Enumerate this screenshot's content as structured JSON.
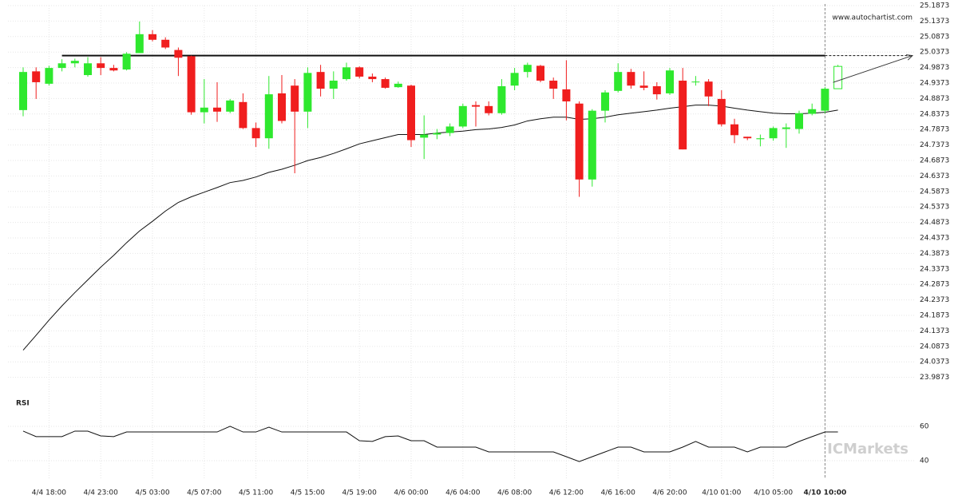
{
  "chart_data": {
    "type": "candlestick",
    "source": "www.autochartist.com",
    "watermark": "ICMarkets",
    "categories": [
      null,
      null,
      "4/4 18:00",
      null,
      null,
      null,
      "4/4 23:00",
      null,
      null,
      null,
      "4/5 03:00",
      null,
      null,
      null,
      "4/5 07:00",
      null,
      null,
      null,
      "4/5 11:00",
      null,
      null,
      null,
      "4/5 15:00",
      null,
      null,
      null,
      "4/5 19:00",
      null,
      null,
      null,
      "4/6 00:00",
      null,
      null,
      null,
      "4/6 04:00",
      null,
      null,
      null,
      "4/6 08:00",
      null,
      null,
      null,
      "4/6 12:00",
      null,
      null,
      null,
      "4/6 16:00",
      null,
      null,
      null,
      "4/6 20:00",
      null,
      null,
      null,
      "4/10 01:00",
      null,
      null,
      null,
      "4/10 05:00",
      null,
      null,
      null,
      "4/10 10:00",
      null
    ],
    "open": [
      24.85,
      24.975,
      24.935,
      24.986,
      25.001,
      24.963,
      25.001,
      24.986,
      24.981,
      25.034,
      25.095,
      25.077,
      25.044,
      25.024,
      24.843,
      24.858,
      24.845,
      24.876,
      24.792,
      24.759,
      24.904,
      24.929,
      24.845,
      24.973,
      24.919,
      24.95,
      24.988,
      24.958,
      24.95,
      24.924,
      24.929,
      24.761,
      24.771,
      24.776,
      24.797,
      24.866,
      24.863,
      24.84,
      24.929,
      24.973,
      24.993,
      24.945,
      24.917,
      24.871,
      24.626,
      24.848,
      24.912,
      24.973,
      24.929,
      24.927,
      24.904,
      24.945,
      24.94,
      24.942,
      24.886,
      24.804,
      24.764,
      24.756,
      24.759,
      24.789,
      24.789,
      24.838,
      24.848,
      24.919
    ],
    "high": [
      24.988,
      24.988,
      24.993,
      25.014,
      25.016,
      25.021,
      25.021,
      24.996,
      25.037,
      25.136,
      25.108,
      25.085,
      25.052,
      25.026,
      24.95,
      24.94,
      24.886,
      24.904,
      24.81,
      24.96,
      24.963,
      24.95,
      24.988,
      24.996,
      24.975,
      25.003,
      24.991,
      24.968,
      24.955,
      24.942,
      24.932,
      24.833,
      24.789,
      24.807,
      24.871,
      24.878,
      24.878,
      24.95,
      24.986,
      25.003,
      24.996,
      24.955,
      25.011,
      24.878,
      24.853,
      24.914,
      25.001,
      24.983,
      24.975,
      24.94,
      24.986,
      24.986,
      24.96,
      24.95,
      24.914,
      24.822,
      24.764,
      24.771,
      24.797,
      24.807,
      24.848,
      24.871,
      24.924,
      24.996
    ],
    "low": [
      24.83,
      24.886,
      24.929,
      24.975,
      24.988,
      24.958,
      24.963,
      24.975,
      24.978,
      25.034,
      25.072,
      25.047,
      24.96,
      24.835,
      24.807,
      24.812,
      24.84,
      24.789,
      24.731,
      24.725,
      24.807,
      24.646,
      24.792,
      24.894,
      24.886,
      24.945,
      24.952,
      24.94,
      24.919,
      24.922,
      24.731,
      24.692,
      24.756,
      24.766,
      24.792,
      24.797,
      24.833,
      24.835,
      24.914,
      24.955,
      24.94,
      24.886,
      24.817,
      24.57,
      24.603,
      24.81,
      24.907,
      24.919,
      24.914,
      24.884,
      24.899,
      24.723,
      24.929,
      24.863,
      24.797,
      24.743,
      24.753,
      24.733,
      24.751,
      24.728,
      24.774,
      24.833,
      24.84,
      24.919
    ],
    "close": [
      24.973,
      24.94,
      24.986,
      25.001,
      25.009,
      25.001,
      24.986,
      24.978,
      25.032,
      25.095,
      25.077,
      25.052,
      25.019,
      24.843,
      24.858,
      24.845,
      24.881,
      24.792,
      24.759,
      24.901,
      24.815,
      24.845,
      24.97,
      24.919,
      24.945,
      24.988,
      24.958,
      24.95,
      24.922,
      24.935,
      24.753,
      24.771,
      24.776,
      24.797,
      24.863,
      24.861,
      24.84,
      24.927,
      24.97,
      24.996,
      24.945,
      24.919,
      24.878,
      24.626,
      24.848,
      24.907,
      24.973,
      24.929,
      24.922,
      24.901,
      24.978,
      24.723,
      24.942,
      24.894,
      24.804,
      24.769,
      24.759,
      24.759,
      24.792,
      24.794,
      24.84,
      24.853,
      24.919,
      24.991
    ],
    "ma": [
      24.075,
      24.123,
      24.172,
      24.218,
      24.261,
      24.302,
      24.343,
      24.381,
      24.422,
      24.46,
      24.491,
      24.524,
      24.552,
      24.57,
      24.585,
      24.6,
      24.616,
      24.623,
      24.634,
      24.649,
      24.659,
      24.672,
      24.687,
      24.697,
      24.71,
      24.725,
      24.741,
      24.751,
      24.761,
      24.771,
      24.771,
      24.771,
      24.776,
      24.779,
      24.782,
      24.787,
      24.789,
      24.794,
      24.802,
      24.815,
      24.822,
      24.827,
      24.827,
      24.82,
      24.822,
      24.827,
      24.835,
      24.84,
      24.845,
      24.85,
      24.856,
      24.861,
      24.866,
      24.866,
      24.863,
      24.856,
      24.85,
      24.845,
      24.84,
      24.838,
      24.838,
      24.84,
      24.843,
      24.85
    ],
    "resistance": 25.026,
    "colors": {
      "up": "#2ee82e",
      "down": "#f01e1e",
      "ma": "#111111",
      "resistance": "#111111"
    },
    "ylim": [
      23.9425,
      25.1873
    ],
    "yticks": [
      25.1873,
      25.1373,
      25.0873,
      25.0373,
      24.9873,
      24.9373,
      24.8873,
      24.8373,
      24.7873,
      24.7373,
      24.6873,
      24.6373,
      24.5873,
      24.5373,
      24.4873,
      24.4373,
      24.3873,
      24.3373,
      24.2873,
      24.2373,
      24.1873,
      24.1373,
      24.0873,
      24.0373,
      23.9873
    ],
    "grid": true,
    "rsi": {
      "label": "RSI",
      "values": [
        57.2,
        54,
        54,
        54,
        57.2,
        57.2,
        54.4,
        54,
        56.7,
        56.7,
        56.7,
        56.7,
        56.7,
        56.7,
        56.7,
        56.7,
        60,
        56.7,
        56.7,
        59.5,
        56.7,
        56.7,
        56.7,
        56.7,
        56.7,
        56.7,
        51.6,
        51.2,
        54,
        54.4,
        51.6,
        51.6,
        47.9,
        47.9,
        47.9,
        47.9,
        45.1,
        45.1,
        45.1,
        45.1,
        45.1,
        45.1,
        42.3,
        39.5,
        42.3,
        45.1,
        47.9,
        47.9,
        45.1,
        45.1,
        45.1,
        47.9,
        51.2,
        47.9,
        47.9,
        47.9,
        45.1,
        47.9,
        47.9,
        47.9,
        51.2,
        54,
        56.7,
        56.7
      ],
      "ylim": [
        29.3,
        78.1
      ],
      "yticks": [
        60,
        40
      ],
      "color": "#111111"
    }
  }
}
